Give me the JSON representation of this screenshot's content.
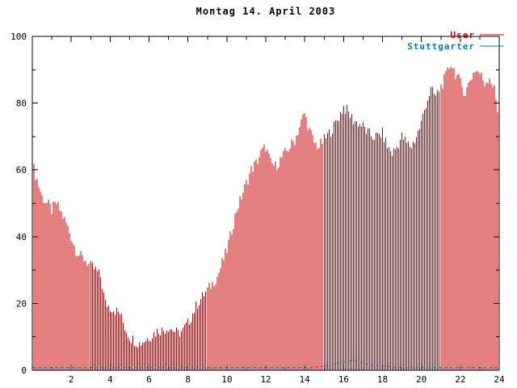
{
  "title": "Montag 14. April 2003",
  "colors": {
    "user_series": "#cc0000",
    "stuttgarter_series": "#0080b0",
    "axis": "#000000",
    "background": "#ffffff"
  },
  "legend": {
    "entries": [
      {
        "label": "User",
        "color": "#cc0000"
      },
      {
        "label": "Stuttgarter",
        "color": "#0080b0"
      }
    ],
    "position": "top-right"
  },
  "chart_data": {
    "type": "bar",
    "title": "Montag 14. April 2003",
    "xlabel": "",
    "ylabel": "",
    "xlim": [
      0,
      24
    ],
    "ylim": [
      0,
      100
    ],
    "xticks": [
      2,
      4,
      6,
      8,
      10,
      12,
      14,
      16,
      18,
      20,
      22,
      24
    ],
    "yticks": [
      0,
      20,
      40,
      60,
      80,
      100
    ],
    "grid": false,
    "legend_position": "top-right",
    "x": [
      0,
      0.25,
      0.5,
      0.75,
      1,
      1.25,
      1.5,
      1.75,
      2,
      2.25,
      2.5,
      2.75,
      3,
      3.25,
      3.5,
      3.75,
      4,
      4.25,
      4.5,
      4.75,
      5,
      5.25,
      5.5,
      5.75,
      6,
      6.25,
      6.5,
      6.75,
      7,
      7.25,
      7.5,
      7.75,
      8,
      8.25,
      8.5,
      8.75,
      9,
      9.25,
      9.5,
      9.75,
      10,
      10.25,
      10.5,
      10.75,
      11,
      11.25,
      11.5,
      11.75,
      12,
      12.25,
      12.5,
      12.75,
      13,
      13.25,
      13.5,
      13.75,
      14,
      14.25,
      14.5,
      14.75,
      15,
      15.25,
      15.5,
      15.75,
      16,
      16.25,
      16.5,
      16.75,
      17,
      17.25,
      17.5,
      17.75,
      18,
      18.25,
      18.5,
      18.75,
      19,
      19.25,
      19.5,
      19.75,
      20,
      20.25,
      20.5,
      20.75,
      21,
      21.25,
      21.5,
      21.75,
      22,
      22.25,
      22.5,
      22.75,
      23,
      23.25,
      23.5,
      23.75,
      24
    ],
    "series": [
      {
        "name": "User",
        "style": "impulses",
        "color": "#cc0000",
        "values": [
          62,
          57,
          52,
          50,
          48,
          50,
          47,
          44,
          40,
          36,
          34,
          33,
          31,
          30,
          28,
          20,
          19,
          18,
          17,
          13,
          10,
          9,
          8,
          9,
          10,
          11,
          12,
          12,
          13,
          12,
          11,
          12,
          14,
          17,
          20,
          22,
          24,
          26,
          28,
          32,
          36,
          42,
          48,
          52,
          56,
          60,
          62,
          65,
          67,
          62,
          61,
          63,
          65,
          67,
          69,
          73,
          77,
          72,
          68,
          67,
          69,
          71,
          73,
          76,
          79,
          77,
          75,
          74,
          73,
          71,
          70,
          70,
          71,
          67,
          65,
          67,
          70,
          68,
          67,
          70,
          74,
          80,
          84,
          82,
          85,
          88,
          92,
          89,
          86,
          83,
          87,
          90,
          89,
          86,
          88,
          84,
          75
        ]
      },
      {
        "name": "Stuttgarter",
        "style": "line",
        "color": "#0080b0",
        "values": [
          0.8,
          0.8,
          0.8,
          0.8,
          0.8,
          0.8,
          0.8,
          0.8,
          0.8,
          0.8,
          0.8,
          0.8,
          0.8,
          0.8,
          0.8,
          0.8,
          0.8,
          0.8,
          0.8,
          0.8,
          0.8,
          0.8,
          0.8,
          0.8,
          0.8,
          0.8,
          0.8,
          0.8,
          0.8,
          0.8,
          0.8,
          0.8,
          0.8,
          0.8,
          0.8,
          0.8,
          0.8,
          0.8,
          0.8,
          0.8,
          0.8,
          0.8,
          0.8,
          0.8,
          0.8,
          0.8,
          0.8,
          0.8,
          0.8,
          0.8,
          0.8,
          0.8,
          0.8,
          0.8,
          0.8,
          0.8,
          0.8,
          0.8,
          1.0,
          1.1,
          1.2,
          1.5,
          1.8,
          2.2,
          2.5,
          2.7,
          2.8,
          2.5,
          2.2,
          1.8,
          1.5,
          1.3,
          1.2,
          1.1,
          1.0,
          0.8,
          0.8,
          0.8,
          0.8,
          0.8,
          0.8,
          0.8,
          0.8,
          0.8,
          0.8,
          0.8,
          0.8,
          0.8,
          0.8,
          0.8,
          0.8,
          0.8,
          0.8,
          0.8,
          0.8,
          0.8,
          0.8
        ]
      }
    ]
  }
}
